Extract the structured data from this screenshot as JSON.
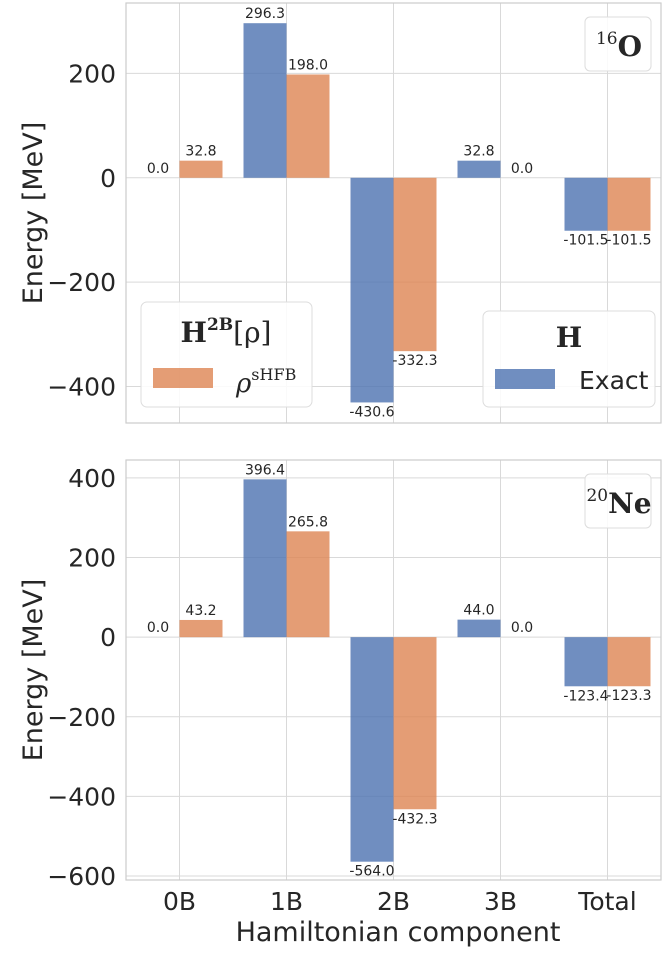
{
  "chart_data": [
    {
      "type": "bar",
      "panel_label": {
        "mass": "16",
        "element": "O"
      },
      "categories": [
        "0B",
        "1B",
        "2B",
        "3B",
        "Total"
      ],
      "series": [
        {
          "name": "Exact",
          "values": [
            0.0,
            296.3,
            -430.6,
            32.8,
            -101.5
          ],
          "color": "#4c72b0"
        },
        {
          "name": "ρsHFB",
          "values": [
            32.8,
            198.0,
            -332.3,
            0.0,
            -101.5
          ],
          "color": "#dd8452"
        }
      ],
      "value_labels": [
        [
          "0.0",
          "296.3",
          "-430.6",
          "32.8",
          "-101.5"
        ],
        [
          "32.8",
          "198.0",
          "-332.3",
          "0.0",
          "-101.5"
        ]
      ],
      "xlabel": "",
      "ylabel": "Energy [MeV]",
      "ylim": [
        -470,
        335
      ],
      "yticks": [
        200,
        0,
        -200,
        -400
      ],
      "ytick_labels": [
        "200",
        "0",
        "−200",
        "−400"
      ],
      "grid": true,
      "legends": [
        {
          "position": "lower-left",
          "title": "H2B[ρ]",
          "title_main": "H",
          "title_sup": "2B",
          "title_tail": "[ρ]",
          "entry": "ρ",
          "entry_sup": "sHFB",
          "series": 1
        },
        {
          "position": "lower-right",
          "title": "H",
          "entry": "Exact",
          "series": 0
        }
      ]
    },
    {
      "type": "bar",
      "panel_label": {
        "mass": "20",
        "element": "Ne"
      },
      "categories": [
        "0B",
        "1B",
        "2B",
        "3B",
        "Total"
      ],
      "series": [
        {
          "name": "Exact",
          "values": [
            0.0,
            396.4,
            -564.0,
            44.0,
            -123.4
          ],
          "color": "#4c72b0"
        },
        {
          "name": "ρsHFB",
          "values": [
            43.2,
            265.8,
            -432.3,
            0.0,
            -123.3
          ],
          "color": "#dd8452"
        }
      ],
      "value_labels": [
        [
          "0.0",
          "396.4",
          "-564.0",
          "44.0",
          "-123.4"
        ],
        [
          "43.2",
          "265.8",
          "-432.3",
          "0.0",
          "-123.3"
        ]
      ],
      "xlabel": "Hamiltonian component",
      "ylabel": "Energy [MeV]",
      "ylim": [
        -610,
        445
      ],
      "yticks": [
        400,
        200,
        0,
        -200,
        -400,
        -600
      ],
      "ytick_labels": [
        "400",
        "200",
        "0",
        "−200",
        "−400",
        "−600"
      ],
      "grid": true
    }
  ]
}
